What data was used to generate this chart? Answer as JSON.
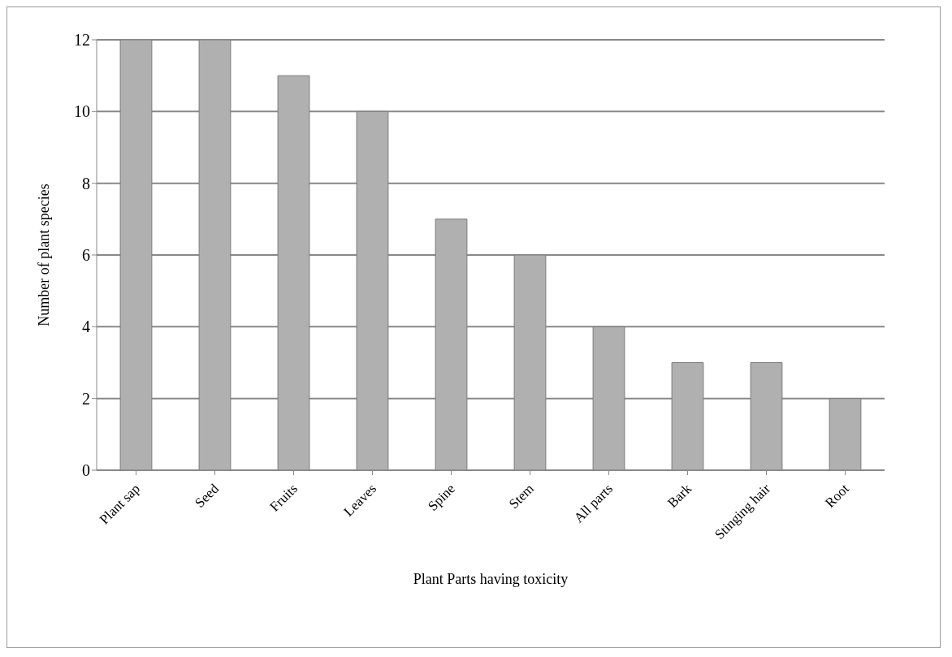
{
  "chart_data": {
    "type": "bar",
    "xlabel": "Plant Parts having toxicity",
    "ylabel": "Number of plant species",
    "categories": [
      "Plant sap",
      "Seed",
      "Fruits",
      "Leaves",
      "Spine",
      "Stem",
      "All parts",
      "Bark",
      "Stinging hair",
      "Root"
    ],
    "values": [
      12,
      12,
      11,
      10,
      7,
      6,
      4,
      3,
      3,
      2
    ],
    "color": "#b0b0b0",
    "ylim": [
      0,
      12
    ],
    "yticks": [
      0,
      2,
      4,
      6,
      8,
      10,
      12
    ],
    "grid": "y"
  }
}
